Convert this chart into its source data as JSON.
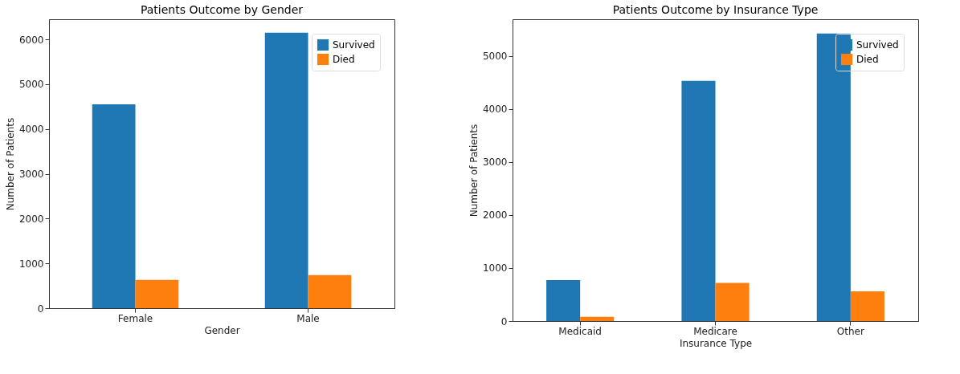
{
  "chart_data": [
    {
      "type": "bar",
      "title": "Patients Outcome by Gender",
      "xlabel": "Gender",
      "ylabel": "Number of Patients",
      "categories": [
        "Female",
        "Male"
      ],
      "series": [
        {
          "name": "Survived",
          "color": "#1f77b4",
          "values": [
            4550,
            6150
          ]
        },
        {
          "name": "Died",
          "color": "#ff7f0e",
          "values": [
            630,
            740
          ]
        }
      ],
      "ylim": [
        0,
        6450
      ],
      "yticks": [
        0,
        1000,
        2000,
        3000,
        4000,
        5000,
        6000
      ],
      "legend": "top right"
    },
    {
      "type": "bar",
      "title": "Patients Outcome by Insurance Type",
      "xlabel": "Insurance Type",
      "ylabel": "Number of Patients",
      "categories": [
        "Medicaid",
        "Medicare",
        "Other"
      ],
      "series": [
        {
          "name": "Survived",
          "color": "#1f77b4",
          "values": [
            770,
            4530,
            5420
          ]
        },
        {
          "name": "Died",
          "color": "#ff7f0e",
          "values": [
            80,
            720,
            560
          ]
        }
      ],
      "ylim": [
        0,
        5690
      ],
      "yticks": [
        0,
        1000,
        2000,
        3000,
        4000,
        5000
      ],
      "legend": "top right"
    }
  ]
}
